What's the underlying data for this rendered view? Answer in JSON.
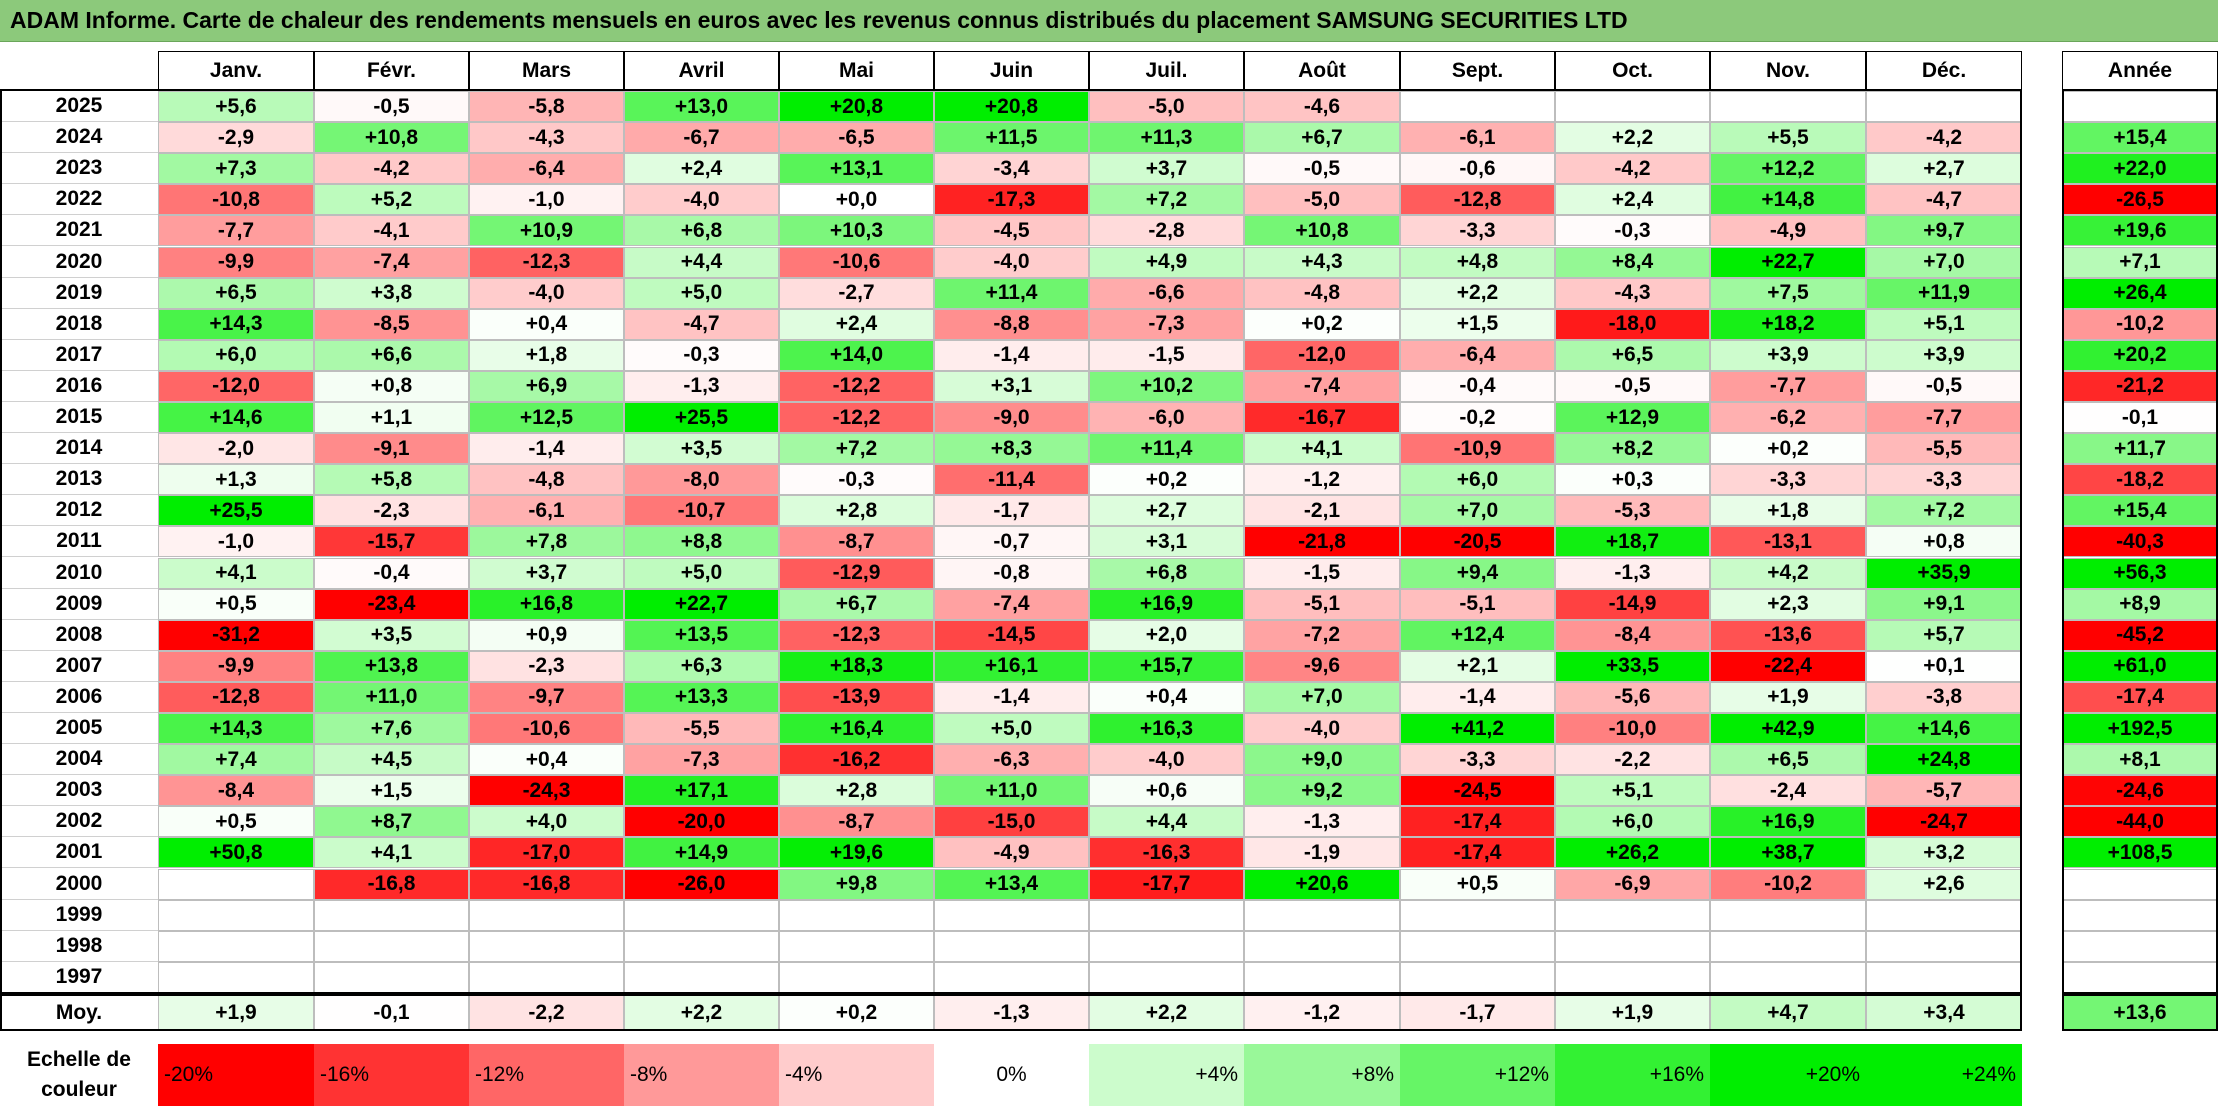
{
  "title": "ADAM Informe. Carte de chaleur des rendements mensuels en euros avec les revenus connus distribués du placement SAMSUNG SECURITIES LTD",
  "chart_data": {
    "type": "heatmap",
    "title": "ADAM Informe. Carte de chaleur des rendements mensuels en euros avec les revenus connus distribués du placement SAMSUNG SECURITIES LTD",
    "columns": [
      "Janv.",
      "Févr.",
      "Mars",
      "Avril",
      "Mai",
      "Juin",
      "Juil.",
      "Août",
      "Sept.",
      "Oct.",
      "Nov.",
      "Déc."
    ],
    "annual_header": "Année",
    "rows": [
      {
        "year": "2025",
        "values": [
          "+5,6",
          "-0,5",
          "-5,8",
          "+13,0",
          "+20,8",
          "+20,8",
          "-5,0",
          "-4,6",
          "",
          "",
          "",
          ""
        ],
        "annual": ""
      },
      {
        "year": "2024",
        "values": [
          "-2,9",
          "+10,8",
          "-4,3",
          "-6,7",
          "-6,5",
          "+11,5",
          "+11,3",
          "+6,7",
          "-6,1",
          "+2,2",
          "+5,5",
          "-4,2"
        ],
        "annual": "+15,4"
      },
      {
        "year": "2023",
        "values": [
          "+7,3",
          "-4,2",
          "-6,4",
          "+2,4",
          "+13,1",
          "-3,4",
          "+3,7",
          "-0,5",
          "-0,6",
          "-4,2",
          "+12,2",
          "+2,7"
        ],
        "annual": "+22,0"
      },
      {
        "year": "2022",
        "values": [
          "-10,8",
          "+5,2",
          "-1,0",
          "-4,0",
          "+0,0",
          "-17,3",
          "+7,2",
          "-5,0",
          "-12,8",
          "+2,4",
          "+14,8",
          "-4,7"
        ],
        "annual": "-26,5"
      },
      {
        "year": "2021",
        "values": [
          "-7,7",
          "-4,1",
          "+10,9",
          "+6,8",
          "+10,3",
          "-4,5",
          "-2,8",
          "+10,8",
          "-3,3",
          "-0,3",
          "-4,9",
          "+9,7"
        ],
        "annual": "+19,6"
      },
      {
        "year": "2020",
        "values": [
          "-9,9",
          "-7,4",
          "-12,3",
          "+4,4",
          "-10,6",
          "-4,0",
          "+4,9",
          "+4,3",
          "+4,8",
          "+8,4",
          "+22,7",
          "+7,0"
        ],
        "annual": "+7,1"
      },
      {
        "year": "2019",
        "values": [
          "+6,5",
          "+3,8",
          "-4,0",
          "+5,0",
          "-2,7",
          "+11,4",
          "-6,6",
          "-4,8",
          "+2,2",
          "-4,3",
          "+7,5",
          "+11,9"
        ],
        "annual": "+26,4"
      },
      {
        "year": "2018",
        "values": [
          "+14,3",
          "-8,5",
          "+0,4",
          "-4,7",
          "+2,4",
          "-8,8",
          "-7,3",
          "+0,2",
          "+1,5",
          "-18,0",
          "+18,2",
          "+5,1"
        ],
        "annual": "-10,2"
      },
      {
        "year": "2017",
        "values": [
          "+6,0",
          "+6,6",
          "+1,8",
          "-0,3",
          "+14,0",
          "-1,4",
          "-1,5",
          "-12,0",
          "-6,4",
          "+6,5",
          "+3,9",
          "+3,9"
        ],
        "annual": "+20,2"
      },
      {
        "year": "2016",
        "values": [
          "-12,0",
          "+0,8",
          "+6,9",
          "-1,3",
          "-12,2",
          "+3,1",
          "+10,2",
          "-7,4",
          "-0,4",
          "-0,5",
          "-7,7",
          "-0,5"
        ],
        "annual": "-21,2"
      },
      {
        "year": "2015",
        "values": [
          "+14,6",
          "+1,1",
          "+12,5",
          "+25,5",
          "-12,2",
          "-9,0",
          "-6,0",
          "-16,7",
          "-0,2",
          "+12,9",
          "-6,2",
          "-7,7"
        ],
        "annual": "-0,1"
      },
      {
        "year": "2014",
        "values": [
          "-2,0",
          "-9,1",
          "-1,4",
          "+3,5",
          "+7,2",
          "+8,3",
          "+11,4",
          "+4,1",
          "-10,9",
          "+8,2",
          "+0,2",
          "-5,5"
        ],
        "annual": "+11,7"
      },
      {
        "year": "2013",
        "values": [
          "+1,3",
          "+5,8",
          "-4,8",
          "-8,0",
          "-0,3",
          "-11,4",
          "+0,2",
          "-1,2",
          "+6,0",
          "+0,3",
          "-3,3",
          "-3,3"
        ],
        "annual": "-18,2"
      },
      {
        "year": "2012",
        "values": [
          "+25,5",
          "-2,3",
          "-6,1",
          "-10,7",
          "+2,8",
          "-1,7",
          "+2,7",
          "-2,1",
          "+7,0",
          "-5,3",
          "+1,8",
          "+7,2"
        ],
        "annual": "+15,4"
      },
      {
        "year": "2011",
        "values": [
          "-1,0",
          "-15,7",
          "+7,8",
          "+8,8",
          "-8,7",
          "-0,7",
          "+3,1",
          "-21,8",
          "-20,5",
          "+18,7",
          "-13,1",
          "+0,8"
        ],
        "annual": "-40,3"
      },
      {
        "year": "2010",
        "values": [
          "+4,1",
          "-0,4",
          "+3,7",
          "+5,0",
          "-12,9",
          "-0,8",
          "+6,8",
          "-1,5",
          "+9,4",
          "-1,3",
          "+4,2",
          "+35,9"
        ],
        "annual": "+56,3"
      },
      {
        "year": "2009",
        "values": [
          "+0,5",
          "-23,4",
          "+16,8",
          "+22,7",
          "+6,7",
          "-7,4",
          "+16,9",
          "-5,1",
          "-5,1",
          "-14,9",
          "+2,3",
          "+9,1"
        ],
        "annual": "+8,9"
      },
      {
        "year": "2008",
        "values": [
          "-31,2",
          "+3,5",
          "+0,9",
          "+13,5",
          "-12,3",
          "-14,5",
          "+2,0",
          "-7,2",
          "+12,4",
          "-8,4",
          "-13,6",
          "+5,7"
        ],
        "annual": "-45,2"
      },
      {
        "year": "2007",
        "values": [
          "-9,9",
          "+13,8",
          "-2,3",
          "+6,3",
          "+18,3",
          "+16,1",
          "+15,7",
          "-9,6",
          "+2,1",
          "+33,5",
          "-22,4",
          "+0,1"
        ],
        "annual": "+61,0"
      },
      {
        "year": "2006",
        "values": [
          "-12,8",
          "+11,0",
          "-9,7",
          "+13,3",
          "-13,9",
          "-1,4",
          "+0,4",
          "+7,0",
          "-1,4",
          "-5,6",
          "+1,9",
          "-3,8"
        ],
        "annual": "-17,4"
      },
      {
        "year": "2005",
        "values": [
          "+14,3",
          "+7,6",
          "-10,6",
          "-5,5",
          "+16,4",
          "+5,0",
          "+16,3",
          "-4,0",
          "+41,2",
          "-10,0",
          "+42,9",
          "+14,6"
        ],
        "annual": "+192,5"
      },
      {
        "year": "2004",
        "values": [
          "+7,4",
          "+4,5",
          "+0,4",
          "-7,3",
          "-16,2",
          "-6,3",
          "-4,0",
          "+9,0",
          "-3,3",
          "-2,2",
          "+6,5",
          "+24,8"
        ],
        "annual": "+8,1"
      },
      {
        "year": "2003",
        "values": [
          "-8,4",
          "+1,5",
          "-24,3",
          "+17,1",
          "+2,8",
          "+11,0",
          "+0,6",
          "+9,2",
          "-24,5",
          "+5,1",
          "-2,4",
          "-5,7"
        ],
        "annual": "-24,6"
      },
      {
        "year": "2002",
        "values": [
          "+0,5",
          "+8,7",
          "+4,0",
          "-20,0",
          "-8,7",
          "-15,0",
          "+4,4",
          "-1,3",
          "-17,4",
          "+6,0",
          "+16,9",
          "-24,7"
        ],
        "annual": "-44,0"
      },
      {
        "year": "2001",
        "values": [
          "+50,8",
          "+4,1",
          "-17,0",
          "+14,9",
          "+19,6",
          "-4,9",
          "-16,3",
          "-1,9",
          "-17,4",
          "+26,2",
          "+38,7",
          "+3,2"
        ],
        "annual": "+108,5"
      },
      {
        "year": "2000",
        "values": [
          "",
          "-16,8",
          "-16,8",
          "-26,0",
          "+9,8",
          "+13,4",
          "-17,7",
          "+20,6",
          "+0,5",
          "-6,9",
          "-10,2",
          "+2,6"
        ],
        "annual": ""
      },
      {
        "year": "1999",
        "values": [
          "",
          "",
          "",
          "",
          "",
          "",
          "",
          "",
          "",
          "",
          "",
          ""
        ],
        "annual": ""
      },
      {
        "year": "1998",
        "values": [
          "",
          "",
          "",
          "",
          "",
          "",
          "",
          "",
          "",
          "",
          "",
          ""
        ],
        "annual": ""
      },
      {
        "year": "1997",
        "values": [
          "",
          "",
          "",
          "",
          "",
          "",
          "",
          "",
          "",
          "",
          "",
          ""
        ],
        "annual": ""
      }
    ],
    "average": {
      "label": "Moy.",
      "values": [
        "+1,9",
        "-0,1",
        "-2,2",
        "+2,2",
        "+0,2",
        "-1,3",
        "+2,2",
        "-1,2",
        "-1,7",
        "+1,9",
        "+4,7",
        "+3,4"
      ],
      "annual": "+13,6"
    },
    "color_scale": {
      "label": "Echelle de couleur",
      "stops": [
        "-20%",
        "-16%",
        "-12%",
        "-8%",
        "-4%",
        "0%",
        "+4%",
        "+8%",
        "+12%",
        "+16%",
        "+20%",
        "+24%"
      ],
      "negative_color": "#ff0000",
      "neutral_color": "#ffffff",
      "positive_color": "#00ee00"
    },
    "colors": {
      "title_background": "#8cc97b"
    }
  }
}
